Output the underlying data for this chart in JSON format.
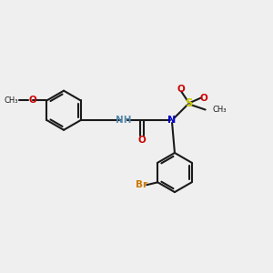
{
  "bg_color": "#efefef",
  "bond_color": "#1a1a1a",
  "nitrogen_color": "#0000cc",
  "oxygen_color": "#cc0000",
  "sulfur_color": "#cccc00",
  "bromine_color": "#cc7700",
  "nh_color": "#5588aa",
  "lw": 1.5,
  "ring_r": 0.75,
  "xlim": [
    0,
    10
  ],
  "ylim": [
    0,
    8
  ]
}
